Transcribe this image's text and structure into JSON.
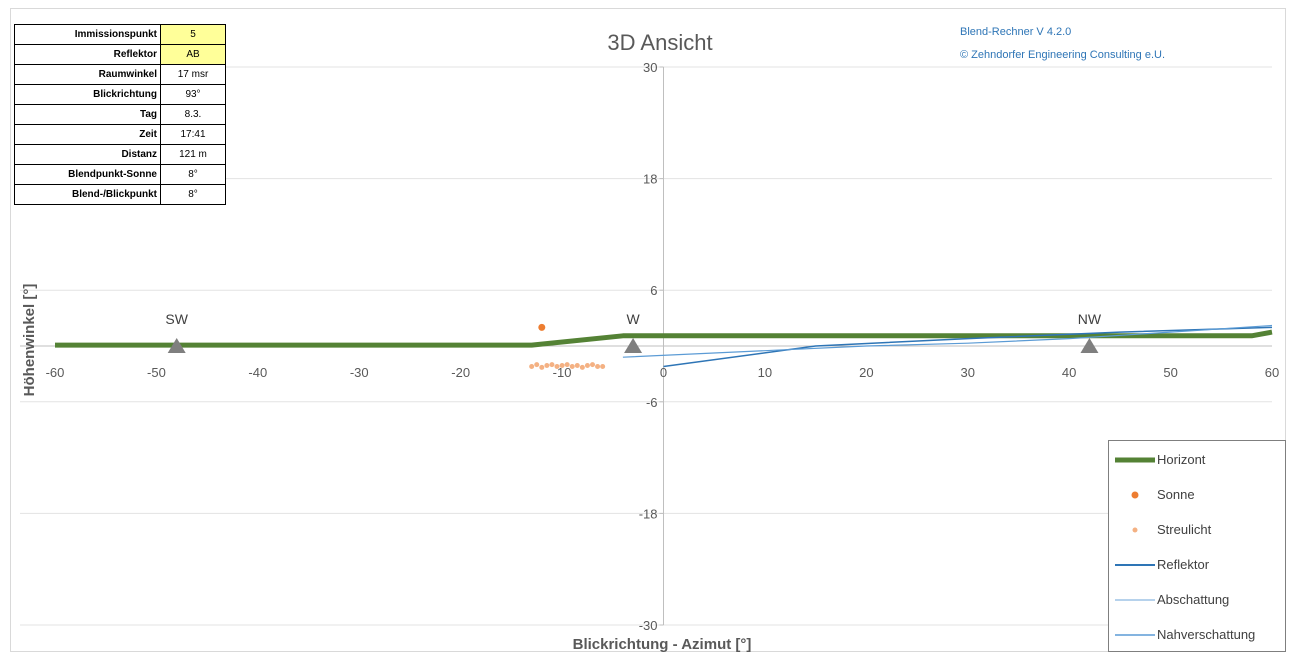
{
  "info_table": {
    "rows": [
      {
        "label": "Immissionspunkt",
        "value": "5",
        "highlight": true
      },
      {
        "label": "Reflektor",
        "value": "AB",
        "highlight": true
      },
      {
        "label": "Raumwinkel",
        "value": "17 msr",
        "highlight": false
      },
      {
        "label": "Blickrichtung",
        "value": "93°",
        "highlight": false
      },
      {
        "label": "Tag",
        "value": "8.3.",
        "highlight": false
      },
      {
        "label": "Zeit",
        "value": "17:41",
        "highlight": false
      },
      {
        "label": "Distanz",
        "value": "121 m",
        "highlight": false
      },
      {
        "label": "Blendpunkt-Sonne",
        "value": "8°",
        "highlight": false
      },
      {
        "label": "Blend-/Blickpunkt",
        "value": "8°",
        "highlight": false
      }
    ]
  },
  "credits": {
    "app": "Blend-Rechner   V 4.2.0",
    "company": "© Zehndorfer Engineering Consulting e.U."
  },
  "chart_data": {
    "type": "line",
    "title": "3D Ansicht",
    "xlabel": "Blickrichtung - Azimut [°]",
    "ylabel": "Höhenwinkel [°]",
    "xlim": [
      -60,
      60
    ],
    "ylim": [
      -30,
      30
    ],
    "xticks": [
      -60,
      -50,
      -40,
      -30,
      -20,
      -10,
      0,
      10,
      20,
      30,
      40,
      50,
      60
    ],
    "yticks": [
      30,
      18,
      6,
      -6,
      -18,
      -30
    ],
    "grid": "horizontal",
    "legend_position": "bottom-right",
    "compass_markers": [
      {
        "label": "SW",
        "x": -48,
        "y": 0
      },
      {
        "label": "W",
        "x": -3,
        "y": 0
      },
      {
        "label": "NW",
        "x": 42,
        "y": 0
      }
    ],
    "series": [
      {
        "name": "Horizont",
        "kind": "line",
        "color": "#548235",
        "x": [
          -60,
          -13,
          -4,
          58,
          60
        ],
        "y": [
          0.1,
          0.1,
          1.1,
          1.1,
          1.5
        ]
      },
      {
        "name": "Sonne",
        "kind": "scatter",
        "color": "#ed7d31",
        "x": [
          -12
        ],
        "y": [
          2
        ]
      },
      {
        "name": "Streulicht",
        "kind": "scatter",
        "color": "#f4b183",
        "x": [
          -13,
          -12.5,
          -12,
          -11.5,
          -11,
          -10.5,
          -10,
          -9.5,
          -9,
          -8.5,
          -8,
          -7.5,
          -7,
          -6.5,
          -6
        ],
        "y": [
          -2.2,
          -2.0,
          -2.3,
          -2.1,
          -2.0,
          -2.2,
          -2.1,
          -2.0,
          -2.2,
          -2.1,
          -2.3,
          -2.1,
          -2.0,
          -2.2,
          -2.2
        ]
      },
      {
        "name": "Reflektor",
        "kind": "line",
        "color": "#2e75b6",
        "x": [
          0,
          15,
          30,
          45,
          60
        ],
        "y": [
          -2.2,
          0,
          0.8,
          1.5,
          2
        ]
      },
      {
        "name": "Abschattung",
        "kind": "line",
        "color": "#9dc3e6",
        "x": [],
        "y": []
      },
      {
        "name": "Nahverschattung",
        "kind": "line",
        "color": "#5b9bd5",
        "x": [
          -4,
          10,
          20,
          30,
          40,
          50,
          60
        ],
        "y": [
          -1.2,
          -0.5,
          0,
          0.3,
          0.8,
          1.5,
          2.2
        ]
      }
    ]
  }
}
